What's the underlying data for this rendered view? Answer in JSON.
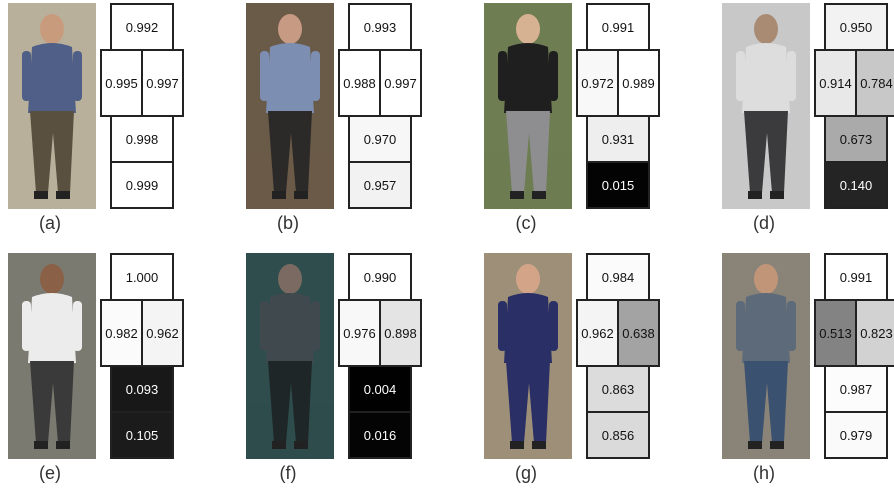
{
  "colors": {
    "cell_border": "#222222",
    "background": "#ffffff"
  },
  "panels": [
    {
      "label": "(a)",
      "scores": {
        "head": "0.992",
        "left": "0.995",
        "right": "0.997",
        "lower1": "0.998",
        "lower2": "0.999"
      },
      "fills": {
        "head": "#ffffff",
        "left": "#ffffff",
        "right": "#ffffff",
        "lower1": "#ffffff",
        "lower2": "#ffffff"
      },
      "photo_colors": {
        "bg": "#b9b09b",
        "top": "#4f5f87",
        "bottom": "#5a5040",
        "skin": "#c99b7d"
      }
    },
    {
      "label": "(b)",
      "scores": {
        "head": "0.993",
        "left": "0.988",
        "right": "0.997",
        "lower1": "0.970",
        "lower2": "0.957"
      },
      "fills": {
        "head": "#ffffff",
        "left": "#ffffff",
        "right": "#ffffff",
        "lower1": "#f7f7f7",
        "lower2": "#f2f2f2"
      },
      "photo_colors": {
        "bg": "#6a5a48",
        "top": "#7d8eb3",
        "bottom": "#2c2a28",
        "skin": "#c79a83"
      }
    },
    {
      "label": "(c)",
      "scores": {
        "head": "0.991",
        "left": "0.972",
        "right": "0.989",
        "lower1": "0.931",
        "lower2": "0.015"
      },
      "fills": {
        "head": "#ffffff",
        "left": "#f8f8f8",
        "right": "#ffffff",
        "lower1": "#eeeeee",
        "lower2": "#030303"
      },
      "photo_colors": {
        "bg": "#6e7d52",
        "top": "#1f1f20",
        "bottom": "#8e8e90",
        "skin": "#d7b292"
      }
    },
    {
      "label": "(d)",
      "scores": {
        "head": "0.950",
        "left": "0.914",
        "right": "0.784",
        "lower1": "0.673",
        "lower2": "0.140"
      },
      "fills": {
        "head": "#f2f2f2",
        "left": "#e8e8e8",
        "right": "#c8c8c8",
        "lower1": "#aaaaaa",
        "lower2": "#242424"
      },
      "photo_colors": {
        "bg": "#c8c8c8",
        "top": "#dddddd",
        "bottom": "#3b3b3d",
        "skin": "#a98b73"
      }
    },
    {
      "label": "(e)",
      "scores": {
        "head": "1.000",
        "left": "0.982",
        "right": "0.962",
        "lower1": "0.093",
        "lower2": "0.105"
      },
      "fills": {
        "head": "#ffffff",
        "left": "#fbfbfb",
        "right": "#f4f4f4",
        "lower1": "#181818",
        "lower2": "#1b1b1b"
      },
      "photo_colors": {
        "bg": "#7a7a70",
        "top": "#ececec",
        "bottom": "#3a3a3a",
        "skin": "#8a6047"
      }
    },
    {
      "label": "(f)",
      "scores": {
        "head": "0.990",
        "left": "0.976",
        "right": "0.898",
        "lower1": "0.004",
        "lower2": "0.016"
      },
      "fills": {
        "head": "#ffffff",
        "left": "#f8f8f8",
        "right": "#e4e4e4",
        "lower1": "#010101",
        "lower2": "#040404"
      },
      "photo_colors": {
        "bg": "#2e4d4c",
        "top": "#404a4e",
        "bottom": "#1e2628",
        "skin": "#7a6a62"
      }
    },
    {
      "label": "(g)",
      "scores": {
        "head": "0.984",
        "left": "0.962",
        "right": "0.638",
        "lower1": "0.863",
        "lower2": "0.856"
      },
      "fills": {
        "head": "#fbfbfb",
        "left": "#f4f4f4",
        "right": "#a3a3a3",
        "lower1": "#dcdcdc",
        "lower2": "#dadada"
      },
      "photo_colors": {
        "bg": "#9e8f78",
        "top": "#2a2f66",
        "bottom": "#2a2f66",
        "skin": "#d4a489"
      }
    },
    {
      "label": "(h)",
      "scores": {
        "head": "0.991",
        "left": "0.513",
        "right": "0.823",
        "lower1": "0.987",
        "lower2": "0.979"
      },
      "fills": {
        "head": "#ffffff",
        "left": "#838383",
        "right": "#d2d2d2",
        "lower1": "#fcfcfc",
        "lower2": "#fafafa"
      },
      "photo_colors": {
        "bg": "#8a8478",
        "top": "#5c6a7a",
        "bottom": "#3b5170",
        "skin": "#c19578"
      }
    }
  ]
}
